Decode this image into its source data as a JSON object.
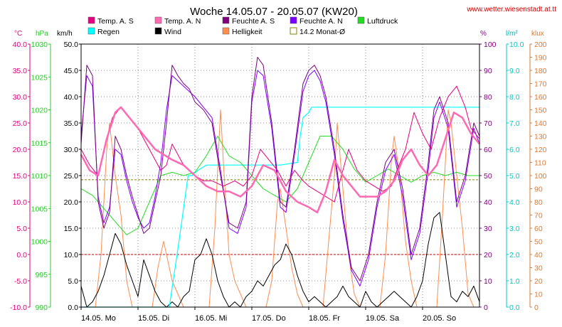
{
  "chart_data": {
    "type": "line",
    "title": "Woche 14.05.07 - 20.05.07 (KW20)",
    "source": "www.wetter.wiesenstadt.at.tt",
    "x_labels": [
      "14.05. Mo",
      "15.05. Di",
      "16.05. Mi",
      "17.05. Do",
      "18.05. Fr",
      "19.05. Sa",
      "20.05. So"
    ],
    "x_range_days": [
      0,
      7
    ],
    "axes": {
      "temp": {
        "unit": "°C",
        "min": -10,
        "max": 40,
        "ticks": [
          "-10.0",
          "-5.0",
          "0.0",
          "5.0",
          "10.0",
          "15.0",
          "20.0",
          "25.0",
          "30.0",
          "35.0",
          "40.0"
        ],
        "color": "#e6007e"
      },
      "press": {
        "unit": "hPa",
        "min": 990,
        "max": 1030,
        "ticks": [
          "990",
          "995",
          "1000",
          "1005",
          "1010",
          "1015",
          "1020",
          "1025",
          "1030"
        ],
        "color": "#2dc82d"
      },
      "wind": {
        "unit": "km/h",
        "min": 0,
        "max": 50,
        "ticks": [
          "0.0",
          "5.0",
          "10.0",
          "15.0",
          "20.0",
          "25.0",
          "30.0",
          "35.0",
          "40.0",
          "45.0",
          "50.0"
        ],
        "color": "#000000"
      },
      "hum": {
        "unit": "%",
        "min": 0,
        "max": 100,
        "ticks": [
          "0",
          "10",
          "20",
          "30",
          "40",
          "50",
          "60",
          "70",
          "80",
          "90",
          "100"
        ],
        "color": "#800080"
      },
      "rain": {
        "unit": "l/m²",
        "min": 0,
        "max": 10,
        "ticks": [
          "0.0",
          "1.0",
          "2.0",
          "3.0",
          "4.0",
          "5.0",
          "6.0",
          "7.0",
          "8.0",
          "9.0",
          "10.0"
        ],
        "color": "#00c8c8"
      },
      "lux": {
        "unit": "klux",
        "min": 0,
        "max": 200,
        "ticks": [
          "0",
          "10",
          "20",
          "30",
          "40",
          "50",
          "60",
          "70",
          "80",
          "90",
          "100",
          "110",
          "120",
          "130",
          "140",
          "150",
          "160",
          "170",
          "180",
          "190",
          "200"
        ],
        "color": "#e07830"
      }
    },
    "legend": [
      {
        "name": "Temp. A. S",
        "color": "#e6007e",
        "style": "filled"
      },
      {
        "name": "Temp. A. N",
        "color": "#ff69b4",
        "style": "filled"
      },
      {
        "name": "Feuchte A. S",
        "color": "#800080",
        "style": "filled"
      },
      {
        "name": "Feuchte A. N",
        "color": "#7b00ff",
        "style": "filled"
      },
      {
        "name": "Luftdruck",
        "color": "#22dd22",
        "style": "filled"
      },
      {
        "name": "Regen",
        "color": "#00ffff",
        "style": "filled"
      },
      {
        "name": "Wind",
        "color": "#000000",
        "style": "filled"
      },
      {
        "name": "Helligkeit",
        "color": "#ff8c50",
        "style": "filled"
      },
      {
        "name": "14.2 Monat-Ø",
        "color": "#808000",
        "style": "outline"
      }
    ],
    "reference_lines": [
      {
        "name": "14.2 Monat-Ø",
        "axis": "temp",
        "value": 14.2,
        "color": "#808000"
      },
      {
        "name": "0 °C",
        "axis": "temp",
        "value": 0,
        "color": "#cc0000"
      }
    ],
    "series": [
      {
        "name": "Temp. A. S",
        "axis": "temp",
        "color": "#e6007e",
        "width": 1,
        "x": [
          0,
          0.15,
          0.3,
          0.45,
          0.55,
          0.7,
          0.85,
          1.0,
          1.1,
          1.2,
          1.3,
          1.4,
          1.5,
          1.6,
          1.7,
          1.8,
          1.9,
          2.0,
          2.15,
          2.3,
          2.5,
          2.7,
          2.85,
          3.0,
          3.15,
          3.3,
          3.45,
          3.6,
          3.75,
          3.9,
          4.0,
          4.15,
          4.3,
          4.45,
          4.55,
          4.7,
          4.85,
          5.0,
          5.15,
          5.3,
          5.45,
          5.55,
          5.7,
          5.85,
          6.0,
          6.15,
          6.3,
          6.45,
          6.6,
          6.75,
          6.85,
          7.0
        ],
        "y": [
          20,
          17,
          15,
          22,
          26,
          28,
          26,
          24,
          22,
          20,
          18,
          16,
          17,
          21,
          19,
          17,
          16,
          15,
          14,
          14,
          13,
          14,
          13,
          15,
          20,
          18,
          16,
          13,
          16,
          14,
          13,
          12,
          11,
          10,
          14,
          20,
          16,
          14,
          13,
          12,
          13,
          16,
          20,
          27,
          23,
          20,
          26,
          30,
          32,
          28,
          24,
          22
        ]
      },
      {
        "name": "Temp. A. N",
        "axis": "temp",
        "color": "#ff69b4",
        "width": 2.5,
        "x": [
          0,
          0.15,
          0.3,
          0.45,
          0.6,
          0.7,
          0.85,
          1.0,
          1.15,
          1.3,
          1.45,
          1.6,
          1.8,
          2.0,
          2.2,
          2.4,
          2.6,
          2.8,
          3.0,
          3.2,
          3.4,
          3.6,
          3.8,
          4.0,
          4.15,
          4.3,
          4.45,
          4.6,
          4.75,
          4.9,
          5.05,
          5.2,
          5.35,
          5.5,
          5.65,
          5.8,
          5.95,
          6.1,
          6.25,
          6.4,
          6.55,
          6.7,
          6.85,
          7.0
        ],
        "y": [
          19,
          16,
          15,
          22,
          27,
          28,
          26,
          24,
          22,
          20,
          19,
          18,
          17,
          15,
          13,
          12,
          12,
          11,
          13,
          17,
          16,
          12,
          10,
          9,
          8,
          12,
          18,
          15,
          13,
          11,
          11,
          11,
          12,
          14,
          18,
          20,
          17,
          15,
          17,
          22,
          27,
          26,
          23,
          21
        ]
      },
      {
        "name": "Feuchte A. S",
        "axis": "hum",
        "color": "#800080",
        "width": 1,
        "x": [
          0,
          0.1,
          0.2,
          0.3,
          0.4,
          0.5,
          0.6,
          0.7,
          0.8,
          0.9,
          1.0,
          1.1,
          1.2,
          1.3,
          1.4,
          1.5,
          1.6,
          1.7,
          1.8,
          1.9,
          2.0,
          2.15,
          2.3,
          2.45,
          2.6,
          2.75,
          2.9,
          3.0,
          3.1,
          3.2,
          3.35,
          3.5,
          3.6,
          3.75,
          3.9,
          4.0,
          4.1,
          4.2,
          4.3,
          4.45,
          4.6,
          4.75,
          4.9,
          5.05,
          5.2,
          5.35,
          5.5,
          5.65,
          5.8,
          5.95,
          6.1,
          6.2,
          6.3,
          6.45,
          6.6,
          6.75,
          6.9,
          7.0
        ],
        "y": [
          62,
          92,
          88,
          40,
          30,
          36,
          65,
          60,
          50,
          42,
          35,
          28,
          30,
          40,
          50,
          70,
          92,
          88,
          85,
          83,
          78,
          75,
          70,
          50,
          32,
          30,
          40,
          80,
          95,
          92,
          70,
          40,
          38,
          60,
          85,
          90,
          92,
          88,
          80,
          60,
          35,
          15,
          10,
          20,
          40,
          55,
          60,
          45,
          20,
          30,
          55,
          75,
          80,
          70,
          40,
          50,
          70,
          65
        ]
      },
      {
        "name": "Feuchte A. N",
        "axis": "hum",
        "color": "#7b00ff",
        "width": 1,
        "x": [
          0,
          0.1,
          0.2,
          0.3,
          0.4,
          0.5,
          0.6,
          0.7,
          0.8,
          0.9,
          1.0,
          1.1,
          1.2,
          1.3,
          1.4,
          1.5,
          1.6,
          1.7,
          1.8,
          1.9,
          2.0,
          2.15,
          2.3,
          2.45,
          2.6,
          2.75,
          2.9,
          3.0,
          3.1,
          3.2,
          3.35,
          3.5,
          3.6,
          3.75,
          3.9,
          4.0,
          4.1,
          4.2,
          4.3,
          4.45,
          4.6,
          4.75,
          4.9,
          5.05,
          5.2,
          5.35,
          5.5,
          5.65,
          5.8,
          5.95,
          6.1,
          6.2,
          6.3,
          6.45,
          6.6,
          6.75,
          6.9,
          7.0
        ],
        "y": [
          65,
          88,
          84,
          42,
          32,
          38,
          60,
          58,
          48,
          40,
          34,
          30,
          32,
          42,
          55,
          75,
          88,
          86,
          84,
          82,
          80,
          76,
          72,
          52,
          30,
          28,
          38,
          78,
          90,
          88,
          68,
          38,
          36,
          58,
          82,
          88,
          90,
          86,
          78,
          58,
          33,
          14,
          8,
          18,
          38,
          52,
          58,
          42,
          18,
          28,
          52,
          72,
          78,
          68,
          38,
          48,
          68,
          62
        ]
      },
      {
        "name": "Luftdruck",
        "axis": "press",
        "color": "#22dd22",
        "width": 1,
        "x": [
          0,
          0.2,
          0.4,
          0.6,
          0.8,
          1.0,
          1.2,
          1.4,
          1.6,
          1.8,
          2.0,
          2.2,
          2.4,
          2.6,
          2.8,
          3.0,
          3.2,
          3.4,
          3.6,
          3.8,
          4.0,
          4.2,
          4.4,
          4.6,
          4.8,
          5.0,
          5.2,
          5.4,
          5.6,
          5.8,
          6.0,
          6.2,
          6.4,
          6.6,
          6.8,
          7.0
        ],
        "y": [
          1008,
          1007,
          1005,
          1003,
          1001,
          1002,
          1006,
          1010,
          1010.5,
          1010,
          1010.5,
          1013,
          1016,
          1013,
          1012,
          1010,
          1008,
          1007,
          1006,
          1008,
          1012,
          1016,
          1016,
          1014,
          1011,
          1009,
          1010,
          1011,
          1010,
          1009,
          1010,
          1010.5,
          1010,
          1010.5,
          1010,
          1010
        ]
      },
      {
        "name": "Regen",
        "axis": "rain",
        "color": "#00ffff",
        "width": 1.2,
        "x": [
          0,
          1.55,
          1.72,
          1.88,
          1.95,
          2.05,
          2.2,
          2.5,
          3.0,
          3.5,
          3.8,
          3.85,
          3.9,
          4.0,
          4.05,
          4.5,
          5.0,
          6.0,
          7.0
        ],
        "y": [
          0,
          0,
          2.5,
          5.0,
          5.0,
          5.2,
          5.4,
          5.4,
          5.4,
          5.4,
          5.5,
          6.5,
          7.2,
          7.4,
          7.6,
          7.6,
          7.6,
          7.6,
          7.6
        ]
      },
      {
        "name": "Wind",
        "axis": "wind",
        "color": "#000000",
        "width": 1,
        "x": [
          0,
          0.1,
          0.2,
          0.3,
          0.4,
          0.5,
          0.6,
          0.7,
          0.8,
          0.9,
          1.0,
          1.1,
          1.2,
          1.3,
          1.4,
          1.5,
          1.6,
          1.7,
          1.8,
          1.9,
          2.0,
          2.1,
          2.2,
          2.3,
          2.4,
          2.5,
          2.6,
          2.7,
          2.8,
          2.9,
          3.0,
          3.1,
          3.2,
          3.3,
          3.4,
          3.5,
          3.6,
          3.7,
          3.8,
          3.9,
          4.0,
          4.1,
          4.2,
          4.3,
          4.4,
          4.5,
          4.6,
          4.7,
          4.8,
          4.9,
          5.0,
          5.1,
          5.2,
          5.3,
          5.4,
          5.5,
          5.6,
          5.7,
          5.8,
          5.9,
          6.0,
          6.1,
          6.2,
          6.3,
          6.4,
          6.5,
          6.6,
          6.7,
          6.8,
          6.9,
          7.0
        ],
        "y": [
          4,
          0,
          1,
          3,
          6,
          10,
          14,
          12,
          8,
          5,
          2,
          9,
          6,
          3,
          1,
          0,
          1,
          0,
          2,
          3,
          9,
          10,
          13,
          10,
          5,
          2,
          0,
          1,
          0,
          2,
          3,
          5,
          4,
          6,
          8,
          9,
          12,
          10,
          6,
          3,
          1,
          2,
          1,
          0,
          1,
          2,
          4,
          2,
          1,
          0,
          3,
          1,
          0,
          1,
          2,
          3,
          2,
          1,
          0,
          2,
          5,
          12,
          17,
          18,
          10,
          2,
          1,
          3,
          2,
          4,
          1
        ]
      },
      {
        "name": "Helligkeit",
        "axis": "lux",
        "color": "#ff8c50",
        "width": 1,
        "x": [
          0,
          0.25,
          0.35,
          0.45,
          0.5,
          0.6,
          0.7,
          0.8,
          0.9,
          1.0,
          1.25,
          1.35,
          1.45,
          1.5,
          1.6,
          1.7,
          1.8,
          1.9,
          2.0,
          2.25,
          2.35,
          2.45,
          2.5,
          2.6,
          2.7,
          2.8,
          2.9,
          3.0,
          3.25,
          3.35,
          3.45,
          3.5,
          3.6,
          3.7,
          3.8,
          3.9,
          4.0,
          4.25,
          4.35,
          4.45,
          4.5,
          4.6,
          4.7,
          4.8,
          4.9,
          5.0,
          5.25,
          5.35,
          5.45,
          5.5,
          5.6,
          5.7,
          5.8,
          5.9,
          6.0,
          6.25,
          6.35,
          6.45,
          6.5,
          6.6,
          6.7,
          6.8,
          6.9,
          7.0
        ],
        "y": [
          0,
          0,
          40,
          120,
          140,
          100,
          70,
          20,
          0,
          0,
          0,
          30,
          50,
          40,
          20,
          10,
          0,
          0,
          0,
          0,
          60,
          150,
          110,
          40,
          20,
          10,
          0,
          0,
          0,
          20,
          80,
          90,
          60,
          30,
          10,
          0,
          0,
          0,
          50,
          100,
          140,
          90,
          40,
          10,
          0,
          0,
          0,
          40,
          110,
          130,
          100,
          50,
          20,
          0,
          0,
          0,
          70,
          150,
          140,
          100,
          60,
          10,
          0,
          0
        ]
      }
    ]
  }
}
